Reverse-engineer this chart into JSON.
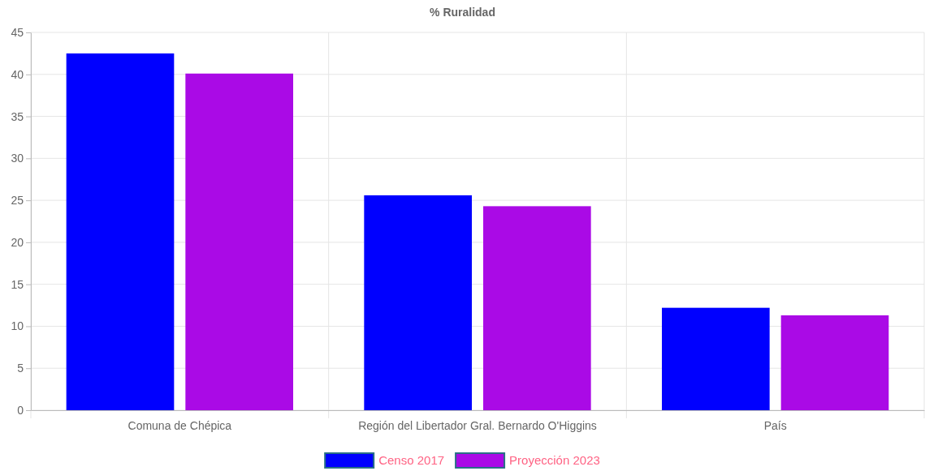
{
  "chart_data": {
    "type": "bar",
    "title": "% Ruralidad",
    "categories": [
      "Comuna de Chépica",
      "Región del Libertador Gral. Bernardo O'Higgins",
      "País"
    ],
    "series": [
      {
        "name": "Censo 2017",
        "color": "#0000ff",
        "values": [
          42.5,
          25.6,
          12.2
        ]
      },
      {
        "name": "Proyección 2023",
        "color": "#aa0ae6",
        "values": [
          40.1,
          24.3,
          11.3
        ]
      }
    ],
    "ylim": [
      0,
      45
    ],
    "yticks": [
      0,
      5,
      10,
      15,
      20,
      25,
      30,
      35,
      40,
      45
    ],
    "grid": true,
    "legend": "bottom"
  }
}
